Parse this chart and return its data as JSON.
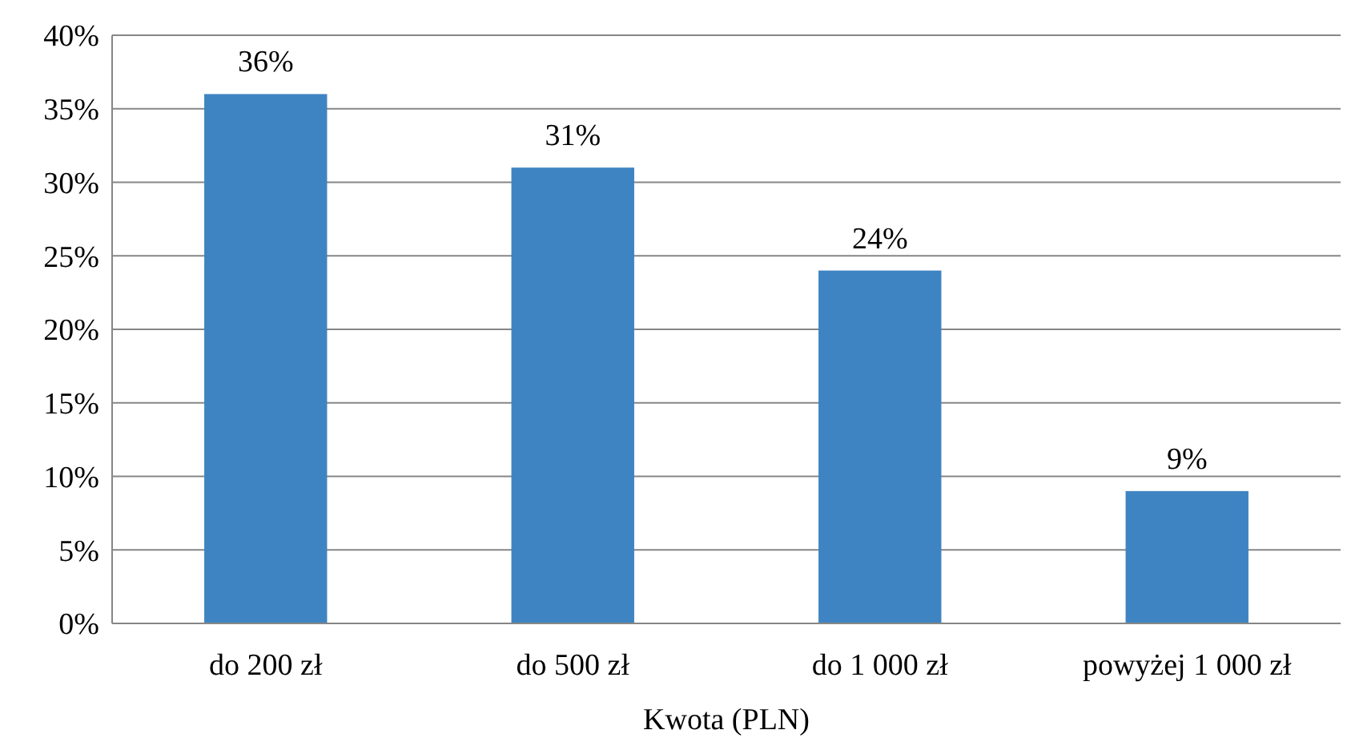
{
  "chart_data": {
    "type": "bar",
    "xlabel": "Kwota (PLN)",
    "categories": [
      "do 200 zł",
      "do 500 zł",
      "do 1 000 zł",
      "powyżej 1 000 zł"
    ],
    "values": [
      36,
      31,
      24,
      9
    ],
    "value_labels": [
      "36%",
      "31%",
      "24%",
      "9%"
    ],
    "color": "#3f84c2",
    "ylim": [
      0,
      40
    ],
    "yticks": [
      {
        "value": 0,
        "label": "0%"
      },
      {
        "value": 5,
        "label": "5%"
      },
      {
        "value": 10,
        "label": "10%"
      },
      {
        "value": 15,
        "label": "15%"
      },
      {
        "value": 20,
        "label": "20%"
      },
      {
        "value": 25,
        "label": "25%"
      },
      {
        "value": 30,
        "label": "30%"
      },
      {
        "value": 35,
        "label": "35%"
      },
      {
        "value": 40,
        "label": "40%"
      }
    ],
    "grid": "y"
  }
}
